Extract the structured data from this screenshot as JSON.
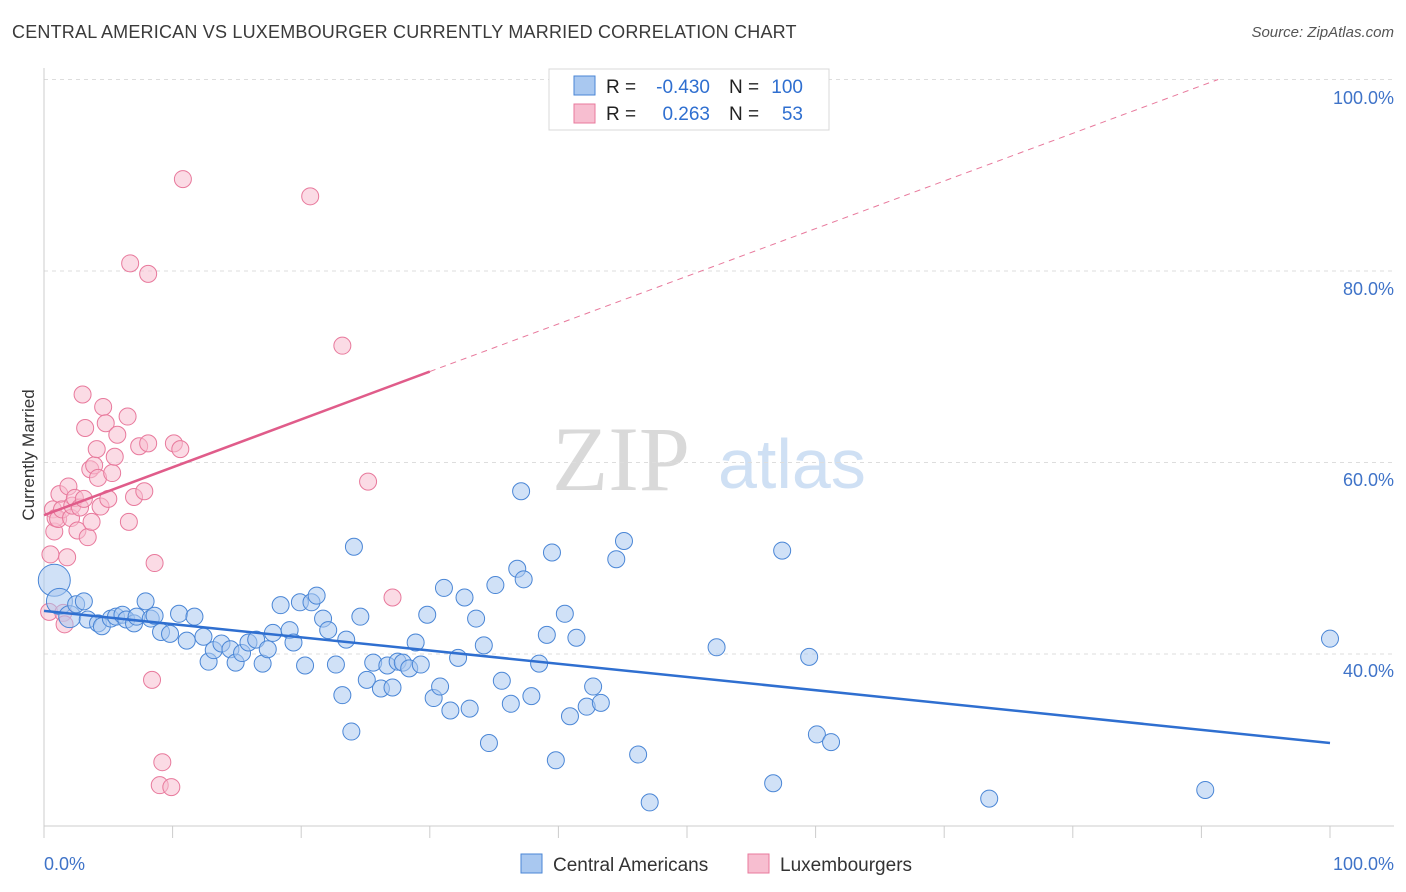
{
  "title": "CENTRAL AMERICAN VS LUXEMBOURGER CURRENTLY MARRIED CORRELATION CHART",
  "source": "Source: ZipAtlas.com",
  "watermark": {
    "zip": "ZIP",
    "atlas": "atlas"
  },
  "colors": {
    "blue": "#4a86d6",
    "blue_fill": "#a9c8f0",
    "blue_line": "#2f6fd0",
    "pink": "#e8799c",
    "pink_fill": "#f7bed0",
    "pink_line": "#e05c8a",
    "axis_label": "#3f73c8"
  },
  "legend": {
    "rows": [
      {
        "r_label": "R =",
        "r_value": "-0.430",
        "n_label": "N =",
        "n_value": "100"
      },
      {
        "r_label": "R =",
        "r_value": "0.263",
        "n_label": "N =",
        "n_value": "53"
      }
    ]
  },
  "bottom_legend": {
    "central": "Central Americans",
    "lux": "Luxembourgers"
  },
  "chart_data": {
    "type": "scatter",
    "xlabel": "",
    "ylabel": "Currently Married",
    "xlim": [
      0,
      100
    ],
    "ylim": [
      20,
      102
    ],
    "x_tick_labels": [
      "0.0%",
      "100.0%"
    ],
    "y_tick_labels": [
      "100.0%",
      "80.0%",
      "60.0%",
      "40.0%"
    ],
    "y_gridlines": [
      100,
      80,
      60,
      40
    ],
    "series": [
      {
        "name": "Central Americans",
        "color": "#4a86d6",
        "trend": {
          "x1": 0,
          "y1": 44.5,
          "x2": 100,
          "y2": 30.7,
          "dashed_beyond": null
        },
        "points": [
          [
            0.8,
            47.7
          ],
          [
            1.2,
            45.5
          ],
          [
            2.0,
            43.9
          ],
          [
            2.5,
            45.2
          ],
          [
            3.1,
            45.5
          ],
          [
            3.4,
            43.6
          ],
          [
            4.2,
            43.2
          ],
          [
            4.5,
            42.9
          ],
          [
            5.2,
            43.7
          ],
          [
            5.6,
            43.9
          ],
          [
            6.1,
            44.1
          ],
          [
            6.4,
            43.6
          ],
          [
            7.0,
            43.2
          ],
          [
            7.2,
            43.9
          ],
          [
            7.9,
            45.5
          ],
          [
            8.3,
            43.7
          ],
          [
            8.6,
            44.0
          ],
          [
            9.1,
            42.3
          ],
          [
            9.8,
            42.1
          ],
          [
            10.5,
            44.2
          ],
          [
            11.1,
            41.4
          ],
          [
            11.7,
            43.9
          ],
          [
            12.4,
            41.8
          ],
          [
            12.8,
            39.2
          ],
          [
            13.2,
            40.4
          ],
          [
            13.8,
            41.1
          ],
          [
            14.5,
            40.5
          ],
          [
            14.9,
            39.1
          ],
          [
            15.4,
            40.1
          ],
          [
            15.9,
            41.2
          ],
          [
            16.5,
            41.5
          ],
          [
            17.0,
            39.0
          ],
          [
            17.4,
            40.5
          ],
          [
            17.8,
            42.2
          ],
          [
            18.4,
            45.1
          ],
          [
            19.1,
            42.5
          ],
          [
            19.4,
            41.2
          ],
          [
            19.9,
            45.4
          ],
          [
            20.3,
            38.8
          ],
          [
            20.8,
            45.4
          ],
          [
            21.2,
            46.1
          ],
          [
            21.7,
            43.7
          ],
          [
            22.1,
            42.5
          ],
          [
            22.7,
            38.9
          ],
          [
            23.2,
            35.7
          ],
          [
            23.5,
            41.5
          ],
          [
            23.9,
            31.9
          ],
          [
            24.1,
            51.2
          ],
          [
            24.6,
            43.9
          ],
          [
            25.1,
            37.3
          ],
          [
            25.6,
            39.1
          ],
          [
            26.2,
            36.4
          ],
          [
            26.7,
            38.8
          ],
          [
            27.1,
            36.5
          ],
          [
            27.5,
            39.2
          ],
          [
            27.9,
            39.1
          ],
          [
            28.4,
            38.5
          ],
          [
            28.9,
            41.2
          ],
          [
            29.3,
            38.9
          ],
          [
            29.8,
            44.1
          ],
          [
            30.3,
            35.4
          ],
          [
            30.8,
            36.6
          ],
          [
            31.1,
            46.9
          ],
          [
            31.6,
            34.1
          ],
          [
            32.2,
            39.6
          ],
          [
            32.7,
            45.9
          ],
          [
            33.1,
            34.3
          ],
          [
            33.6,
            43.7
          ],
          [
            34.2,
            40.9
          ],
          [
            34.6,
            30.7
          ],
          [
            35.1,
            47.2
          ],
          [
            35.6,
            37.2
          ],
          [
            36.3,
            34.8
          ],
          [
            36.8,
            48.9
          ],
          [
            37.3,
            47.8
          ],
          [
            37.9,
            35.6
          ],
          [
            38.5,
            39.0
          ],
          [
            39.1,
            42.0
          ],
          [
            39.5,
            50.6
          ],
          [
            39.8,
            28.9
          ],
          [
            40.5,
            44.2
          ],
          [
            40.9,
            33.5
          ],
          [
            41.4,
            41.7
          ],
          [
            42.2,
            34.5
          ],
          [
            42.7,
            36.6
          ],
          [
            43.3,
            34.9
          ],
          [
            44.5,
            49.9
          ],
          [
            45.1,
            51.8
          ],
          [
            46.2,
            29.5
          ],
          [
            47.1,
            24.5
          ],
          [
            52.3,
            40.7
          ],
          [
            56.7,
            26.5
          ],
          [
            57.4,
            50.8
          ],
          [
            59.5,
            39.7
          ],
          [
            60.1,
            31.6
          ],
          [
            61.2,
            30.8
          ],
          [
            73.5,
            24.9
          ],
          [
            90.3,
            25.8
          ],
          [
            100.0,
            41.6
          ],
          [
            37.1,
            57.0
          ]
        ]
      },
      {
        "name": "Luxembourgers",
        "color": "#e8799c",
        "trend": {
          "x1": 0,
          "y1": 54.5,
          "x2": 30,
          "y2": 69.5,
          "dash_x2": 91.3,
          "dash_y2": 100
        },
        "points": [
          [
            0.4,
            44.4
          ],
          [
            0.5,
            50.4
          ],
          [
            0.7,
            55.1
          ],
          [
            0.8,
            52.8
          ],
          [
            0.9,
            54.2
          ],
          [
            1.1,
            54.1
          ],
          [
            1.2,
            56.7
          ],
          [
            1.4,
            55.1
          ],
          [
            1.5,
            44.3
          ],
          [
            1.6,
            43.1
          ],
          [
            1.8,
            50.1
          ],
          [
            1.9,
            57.5
          ],
          [
            2.1,
            54.2
          ],
          [
            2.2,
            55.5
          ],
          [
            2.4,
            56.3
          ],
          [
            2.6,
            52.9
          ],
          [
            2.8,
            55.3
          ],
          [
            3.0,
            67.1
          ],
          [
            3.1,
            56.2
          ],
          [
            3.2,
            63.6
          ],
          [
            3.4,
            52.2
          ],
          [
            3.6,
            59.3
          ],
          [
            3.7,
            53.8
          ],
          [
            3.9,
            59.7
          ],
          [
            4.1,
            61.4
          ],
          [
            4.2,
            58.4
          ],
          [
            4.4,
            55.4
          ],
          [
            4.6,
            65.8
          ],
          [
            4.8,
            64.1
          ],
          [
            5.0,
            56.2
          ],
          [
            5.3,
            58.9
          ],
          [
            5.5,
            60.6
          ],
          [
            5.7,
            62.9
          ],
          [
            6.5,
            64.8
          ],
          [
            6.6,
            53.8
          ],
          [
            7.0,
            56.4
          ],
          [
            7.4,
            61.7
          ],
          [
            7.8,
            57.0
          ],
          [
            8.1,
            62.0
          ],
          [
            8.4,
            37.3
          ],
          [
            8.6,
            49.5
          ],
          [
            9.0,
            26.3
          ],
          [
            9.2,
            28.7
          ],
          [
            9.9,
            26.1
          ],
          [
            10.1,
            62.0
          ],
          [
            10.6,
            61.4
          ],
          [
            10.8,
            89.6
          ],
          [
            6.7,
            80.8
          ],
          [
            8.1,
            79.7
          ],
          [
            20.7,
            87.8
          ],
          [
            23.2,
            72.2
          ],
          [
            25.2,
            58.0
          ],
          [
            27.1,
            45.9
          ]
        ]
      }
    ]
  }
}
